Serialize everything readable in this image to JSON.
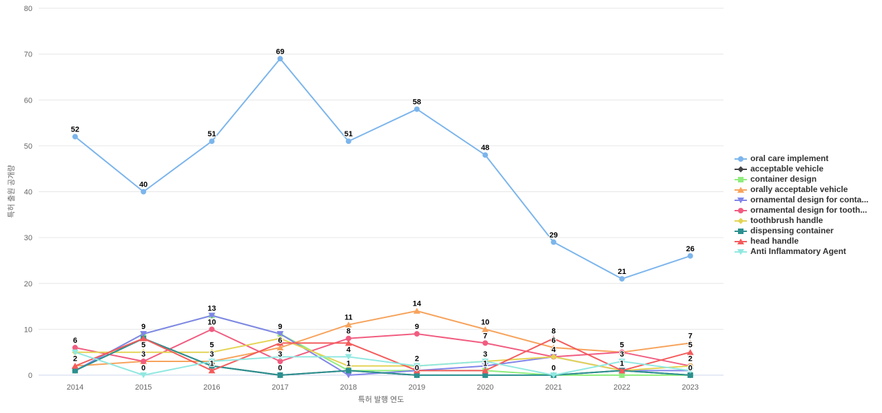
{
  "chart_data": {
    "type": "line",
    "title": "",
    "xlabel": "특허 발행 연도",
    "ylabel": "특허 출원 공개량",
    "x": [
      2014,
      2015,
      2016,
      2017,
      2018,
      2019,
      2020,
      2021,
      2022,
      2023
    ],
    "ylim": [
      0,
      80
    ],
    "ytick_step": 10,
    "yticks": [
      0,
      10,
      20,
      30,
      40,
      50,
      60,
      70,
      80
    ],
    "grid": true,
    "legend_position": "right",
    "grid_color": "#e6e6e6",
    "axis_line_color": "#ccd6eb",
    "tick_label_color": "#666666",
    "data_label_color": "#000000",
    "series": [
      {
        "name": "oral care implement",
        "color": "#7cb5ec",
        "marker": "circle",
        "values": [
          52,
          40,
          51,
          69,
          51,
          58,
          48,
          29,
          21,
          26
        ],
        "show_labels": [
          1,
          1,
          1,
          1,
          1,
          1,
          1,
          1,
          1,
          1
        ]
      },
      {
        "name": "acceptable vehicle",
        "color": "#434348",
        "marker": "diamond",
        "values": [
          1,
          8,
          2,
          0,
          1,
          0,
          0,
          0,
          1,
          0
        ],
        "show_labels": [
          0,
          0,
          0,
          0,
          0,
          0,
          0,
          0,
          0,
          0
        ]
      },
      {
        "name": "container design",
        "color": "#90ed7d",
        "marker": "square",
        "values": [
          1,
          9,
          13,
          9,
          1,
          1,
          1,
          0,
          0,
          0
        ],
        "show_labels": [
          0,
          0,
          0,
          0,
          0,
          0,
          0,
          0,
          0,
          0
        ]
      },
      {
        "name": "orally acceptable vehicle",
        "color": "#f7a35c",
        "marker": "triangle",
        "values": [
          2,
          3,
          3,
          6,
          11,
          14,
          10,
          6,
          5,
          7
        ],
        "show_labels": [
          0,
          0,
          0,
          1,
          1,
          1,
          1,
          1,
          0,
          1
        ]
      },
      {
        "name": "ornamental design for conta...",
        "color": "#8085e9",
        "marker": "triangle-down",
        "values": [
          1,
          9,
          13,
          9,
          0,
          1,
          2,
          4,
          1,
          1
        ],
        "show_labels": [
          0,
          1,
          1,
          1,
          0,
          0,
          0,
          0,
          0,
          0
        ]
      },
      {
        "name": "ornamental design for tooth...",
        "color": "#f15c80",
        "marker": "circle",
        "values": [
          6,
          3,
          10,
          3,
          8,
          9,
          7,
          4,
          5,
          2
        ],
        "show_labels": [
          1,
          1,
          1,
          1,
          1,
          1,
          1,
          0,
          1,
          0
        ]
      },
      {
        "name": "toothbrush handle",
        "color": "#e4d354",
        "marker": "diamond",
        "values": [
          5,
          5,
          5,
          8,
          2,
          2,
          3,
          4,
          1,
          2
        ],
        "show_labels": [
          0,
          1,
          1,
          0,
          0,
          1,
          0,
          1,
          0,
          1
        ]
      },
      {
        "name": "dispensing container",
        "color": "#2b908f",
        "marker": "square",
        "values": [
          1,
          8,
          2,
          0,
          1,
          0,
          0,
          0,
          1,
          0
        ],
        "show_labels": [
          0,
          0,
          0,
          1,
          1,
          1,
          0,
          0,
          0,
          1
        ]
      },
      {
        "name": "head handle",
        "color": "#f45b5b",
        "marker": "triangle",
        "values": [
          2,
          8,
          1,
          7,
          7,
          1,
          1,
          8,
          1,
          5
        ],
        "show_labels": [
          1,
          0,
          1,
          0,
          0,
          0,
          1,
          1,
          1,
          1
        ]
      },
      {
        "name": "Anti Inflammatory Agent",
        "color": "#91e8e1",
        "marker": "triangle-down",
        "values": [
          5,
          0,
          3,
          4,
          4,
          2,
          3,
          0,
          3,
          1
        ],
        "show_labels": [
          0,
          1,
          1,
          0,
          1,
          0,
          1,
          1,
          1,
          0
        ]
      }
    ]
  }
}
